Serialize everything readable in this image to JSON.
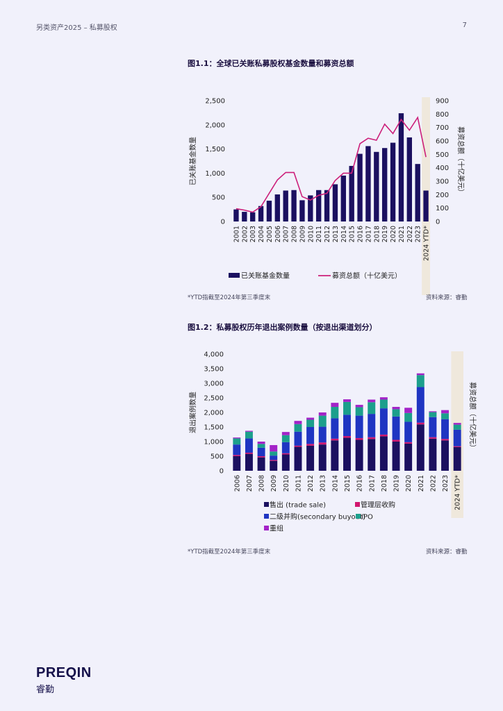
{
  "header": {
    "left": "另类资产2025 – 私募股权",
    "page_number": "7"
  },
  "brand": {
    "name": "PREQIN",
    "name_zh": "睿勤"
  },
  "colors": {
    "bar": "#1b1060",
    "line": "#cc1f7a",
    "highlight": "#efe8dc",
    "background": "#f1f1fb",
    "trade_sale": "#1b1060",
    "mbo": "#d1166e",
    "secondary": "#1f35c2",
    "ipo": "#1c9f8c",
    "restructure": "#a323c8"
  },
  "figure1": {
    "title": "图1.1：全球已关账私募股权基金数量和募资总额",
    "footnote": "*YTD指截至2024年第三季度末",
    "source": "资料来源：睿勤"
  },
  "figure2": {
    "title": "图1.2：私募股权历年退出案例数量（按退出渠道划分）",
    "footnote": "*YTD指截至2024年第三季度末",
    "source": "资料来源：睿勤"
  },
  "chart_data": [
    {
      "type": "bar",
      "title": "图1.1：全球已关账私募股权基金数量和募资总额",
      "categories": [
        "2001",
        "2002",
        "2003",
        "2004",
        "2005",
        "2006",
        "2007",
        "2008",
        "2009",
        "2010",
        "2011",
        "2012",
        "2013",
        "2014",
        "2015",
        "2016",
        "2017",
        "2018",
        "2019",
        "2020",
        "2021",
        "2022",
        "2023",
        "2024 YTD*"
      ],
      "ylabel": "已关账基金数量",
      "y2label": "募资总额（十亿美元）",
      "ylim": [
        0,
        2500
      ],
      "y2lim": [
        0,
        900
      ],
      "yticks": [
        "0",
        "500",
        "1,000",
        "1,500",
        "2,000",
        "2,500"
      ],
      "y2ticks": [
        "0",
        "100",
        "200",
        "300",
        "400",
        "500",
        "600",
        "700",
        "800",
        "900"
      ],
      "highlight_last": true,
      "series": [
        {
          "name": "已关账基金数量",
          "kind": "bar",
          "axis": "left",
          "values": [
            250,
            200,
            190,
            320,
            430,
            560,
            640,
            650,
            440,
            540,
            650,
            650,
            770,
            950,
            1150,
            1400,
            1560,
            1440,
            1520,
            1630,
            2240,
            1740,
            1190,
            640
          ]
        },
        {
          "name": "募资总额（十亿美元）",
          "kind": "line",
          "axis": "right",
          "values": [
            95,
            85,
            70,
            110,
            210,
            310,
            365,
            365,
            185,
            160,
            195,
            210,
            305,
            360,
            360,
            580,
            620,
            605,
            725,
            655,
            760,
            680,
            775,
            480
          ]
        }
      ],
      "legend_position": "bottom"
    },
    {
      "type": "bar",
      "stacked": true,
      "title": "图1.2：私募股权历年退出案例数量（按退出渠道划分）",
      "categories": [
        "2006",
        "2007",
        "2008",
        "2009",
        "2010",
        "2011",
        "2012",
        "2013",
        "2014",
        "2015",
        "2016",
        "2017",
        "2018",
        "2019",
        "2020",
        "2021",
        "2022",
        "2023",
        "2024 YTD*"
      ],
      "ylabel": "退出案例数量",
      "y2label": "募资总额（十亿美元）",
      "ylim": [
        0,
        4000
      ],
      "yticks": [
        "0",
        "500",
        "1,000",
        "1,500",
        "2,000",
        "2,500",
        "3,000",
        "3,500",
        "4,000"
      ],
      "highlight_last": true,
      "series": [
        {
          "name": "售出 (trade sale)",
          "values": [
            500,
            580,
            460,
            340,
            560,
            820,
            860,
            900,
            1040,
            1130,
            1060,
            1090,
            1180,
            1000,
            930,
            1590,
            1100,
            1040,
            810
          ]
        },
        {
          "name": "管理层收购",
          "values": [
            40,
            40,
            40,
            30,
            40,
            40,
            60,
            70,
            60,
            60,
            60,
            60,
            60,
            60,
            50,
            60,
            50,
            50,
            30
          ]
        },
        {
          "name": "二级并购(secondary buyout)",
          "values": [
            360,
            490,
            290,
            150,
            380,
            480,
            580,
            540,
            700,
            730,
            770,
            800,
            900,
            800,
            700,
            1220,
            690,
            680,
            570
          ]
        },
        {
          "name": "IPO",
          "values": [
            210,
            230,
            130,
            140,
            240,
            260,
            250,
            380,
            390,
            440,
            290,
            400,
            300,
            250,
            300,
            410,
            170,
            200,
            170
          ]
        },
        {
          "name": "重组",
          "values": [
            30,
            30,
            80,
            220,
            110,
            110,
            70,
            110,
            140,
            90,
            80,
            90,
            80,
            80,
            180,
            60,
            30,
            110,
            60
          ]
        }
      ],
      "legend_position": "bottom"
    }
  ]
}
